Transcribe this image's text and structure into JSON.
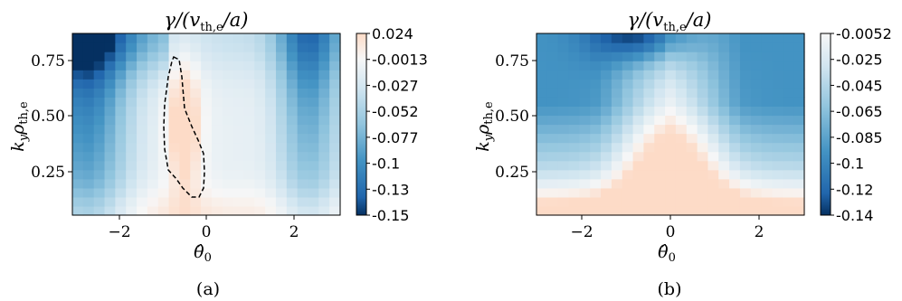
{
  "chart_data": [
    {
      "type": "heatmap",
      "title": "γ/(vth,e/a)",
      "xlabel": "θ̂0",
      "ylabel": "kyρth,e",
      "caption": "(a)",
      "xlim": [
        -3.0,
        3.0
      ],
      "ylim": [
        0.04,
        0.86
      ],
      "xticks": [
        -2,
        0,
        2
      ],
      "xtick_labels": [
        "−2",
        "0",
        "2"
      ],
      "yticks": [
        0.25,
        0.5,
        0.75
      ],
      "ytick_labels": [
        "0.25",
        "0.50",
        "0.75"
      ],
      "colorbar": {
        "vmin": -0.15,
        "vmax": 0.024,
        "ticks": [
          0.024,
          -0.0013,
          -0.027,
          -0.052,
          -0.077,
          -0.1,
          -0.13,
          -0.15
        ],
        "tick_labels": [
          "0.024",
          "-0.0013",
          "-0.027",
          "-0.052",
          "-0.077",
          "-0.1",
          "-0.13",
          "-0.15"
        ],
        "colormap": "RdBu_r"
      },
      "grid": "25 θ̂0 columns × 20 kyρth,e rows; values estimated from color",
      "annotation": "dashed contour enclosing the region where γ > 0"
    },
    {
      "type": "heatmap",
      "title": "γ/(vth,e/a)",
      "xlabel": "θ̂0",
      "ylabel": "kyρth,e",
      "caption": "(b)",
      "xlim": [
        -3.0,
        3.0
      ],
      "ylim": [
        0.04,
        0.86
      ],
      "xticks": [
        -2,
        0,
        2
      ],
      "xtick_labels": [
        "−2",
        "0",
        "2"
      ],
      "yticks": [
        0.25,
        0.5,
        0.75
      ],
      "ytick_labels": [
        "0.25",
        "0.50",
        "0.75"
      ],
      "colorbar": {
        "vmin": -0.14,
        "vmax": -0.0052,
        "ticks": [
          -0.0052,
          -0.025,
          -0.045,
          -0.065,
          -0.085,
          -0.1,
          -0.12,
          -0.14
        ],
        "tick_labels": [
          "-0.0052",
          "-0.025",
          "-0.045",
          "-0.065",
          "-0.085",
          "-0.1",
          "-0.12",
          "-0.14"
        ],
        "colormap": "RdBu_r"
      },
      "grid": "25 θ̂0 columns × 20 kyρth,e rows; values estimated from color"
    }
  ]
}
